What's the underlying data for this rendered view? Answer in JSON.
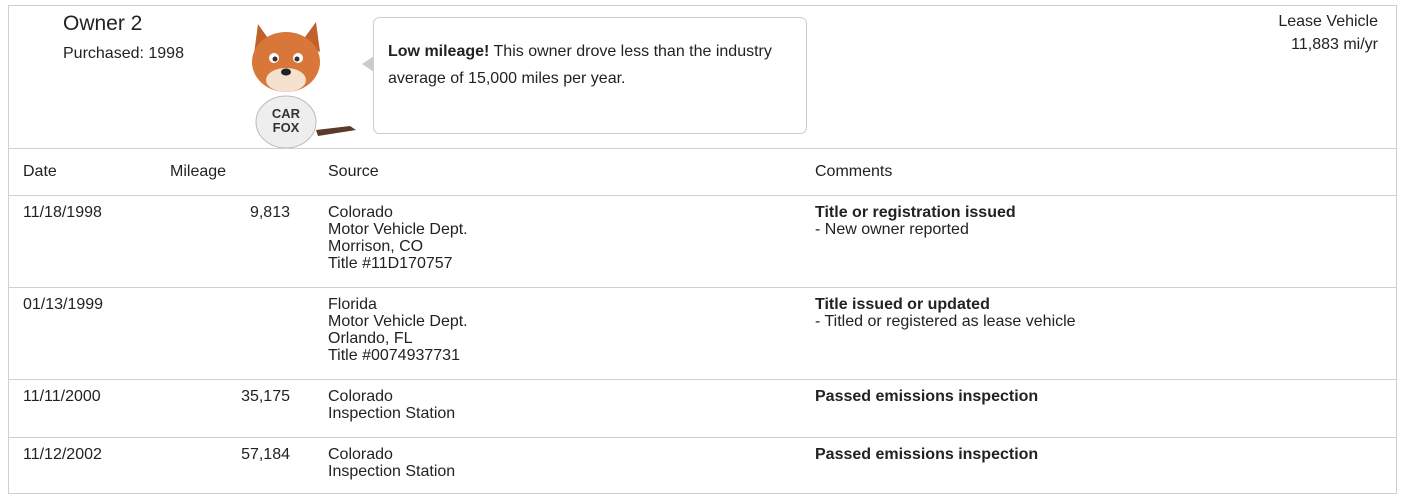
{
  "header": {
    "owner": "Owner 2",
    "purchased": "Purchased: 1998",
    "vehicle_type": "Lease Vehicle",
    "annual_mileage": "11,883 mi/yr"
  },
  "mascot": {
    "shirt_lines": [
      "CAR",
      "FOX"
    ]
  },
  "callout": {
    "emphasis": "Low mileage!",
    "text": "This owner drove less than the industry average of 15,000 miles per year."
  },
  "table": {
    "columns": [
      "Date",
      "Mileage",
      "Source",
      "Comments"
    ],
    "rows": [
      {
        "date": "11/18/1998",
        "mileage": "9,813",
        "source": [
          "Colorado",
          "Motor Vehicle Dept.",
          "Morrison, CO",
          "Title #11D170757"
        ],
        "comment_title": "Title or registration issued",
        "comment_details": [
          "- New owner reported"
        ]
      },
      {
        "date": "01/13/1999",
        "mileage": null,
        "source": [
          "Florida",
          "Motor Vehicle Dept.",
          "Orlando, FL",
          "Title #0074937731"
        ],
        "comment_title": "Title issued or updated",
        "comment_details": [
          "- Titled or registered as lease vehicle"
        ]
      },
      {
        "date": "11/11/2000",
        "mileage": "35,175",
        "source": [
          "Colorado",
          "Inspection Station"
        ],
        "comment_title": "Passed emissions inspection",
        "comment_details": []
      },
      {
        "date": "11/12/2002",
        "mileage": "57,184",
        "source": [
          "Colorado",
          "Inspection Station"
        ],
        "comment_title": "Passed emissions inspection",
        "comment_details": []
      }
    ]
  }
}
